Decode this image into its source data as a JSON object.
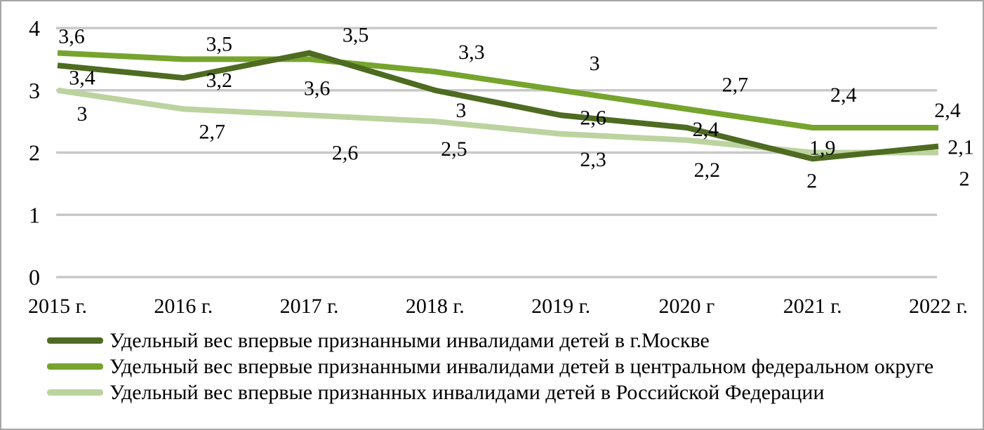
{
  "frame": {
    "background": "#ffffff",
    "border_color": "#a6a6a6"
  },
  "chart_data": {
    "type": "line",
    "title": "",
    "x_categories": [
      "2015 г.",
      "2016 г.",
      "2017 г.",
      "2018 г.",
      "2019 г.",
      "2020 г",
      "2021 г.",
      "2022 г."
    ],
    "yticks": [
      "0",
      "1",
      "2",
      "3",
      "4"
    ],
    "ylim": [
      0,
      4
    ],
    "grid": true,
    "gridline_color": "#c8c8c8",
    "text_color": "#000000",
    "legend_position": "bottom-left",
    "series": [
      {
        "name": "Удельный вес впервые признанными инвалидами детей в г.Москве",
        "color": "#4e6b21",
        "values": [
          3.4,
          3.2,
          3.6,
          3.0,
          2.6,
          2.4,
          1.9,
          2.1
        ],
        "labels": [
          "3,4",
          "3,2",
          "3,6",
          "3",
          "2,6",
          "2,4",
          "1,9",
          "2,1"
        ],
        "label_offsets": [
          [
            35,
            17
          ],
          [
            51,
            3
          ],
          [
            11,
            50
          ],
          [
            37,
            28
          ],
          [
            46,
            3
          ],
          [
            27,
            2
          ],
          [
            14,
            -16
          ],
          [
            32,
            1
          ]
        ]
      },
      {
        "name": "Удельный вес впервые признанными инвалидами детей в центральном федеральном округе",
        "color": "#76a42e",
        "values": [
          3.6,
          3.5,
          3.5,
          3.3,
          3.0,
          2.7,
          2.4,
          2.4
        ],
        "labels": [
          "3,6",
          "3,5",
          "3,5",
          "3,3",
          "3",
          "2,7",
          "2,4",
          "2,4"
        ],
        "label_offsets": [
          [
            20,
            -24
          ],
          [
            51,
            -22
          ],
          [
            66,
            -35
          ],
          [
            52,
            -28
          ],
          [
            48,
            -39
          ],
          [
            69,
            -35
          ],
          [
            44,
            -47
          ],
          [
            13,
            -25
          ]
        ]
      },
      {
        "name": "Удельный вес впервые признанных инвалидами детей в Российской Федерации",
        "color": "#bcd3a0",
        "values": [
          3.0,
          2.7,
          2.6,
          2.5,
          2.3,
          2.2,
          2.0,
          2.0
        ],
        "labels": [
          "3",
          "2,7",
          "2,6",
          "2,5",
          "2,3",
          "2,2",
          "2",
          "2"
        ],
        "label_offsets": [
          [
            35,
            33
          ],
          [
            41,
            32
          ],
          [
            51,
            53
          ],
          [
            27,
            39
          ],
          [
            46,
            36
          ],
          [
            29,
            42
          ],
          [
            -1,
            40
          ],
          [
            37,
            37
          ]
        ]
      }
    ]
  }
}
